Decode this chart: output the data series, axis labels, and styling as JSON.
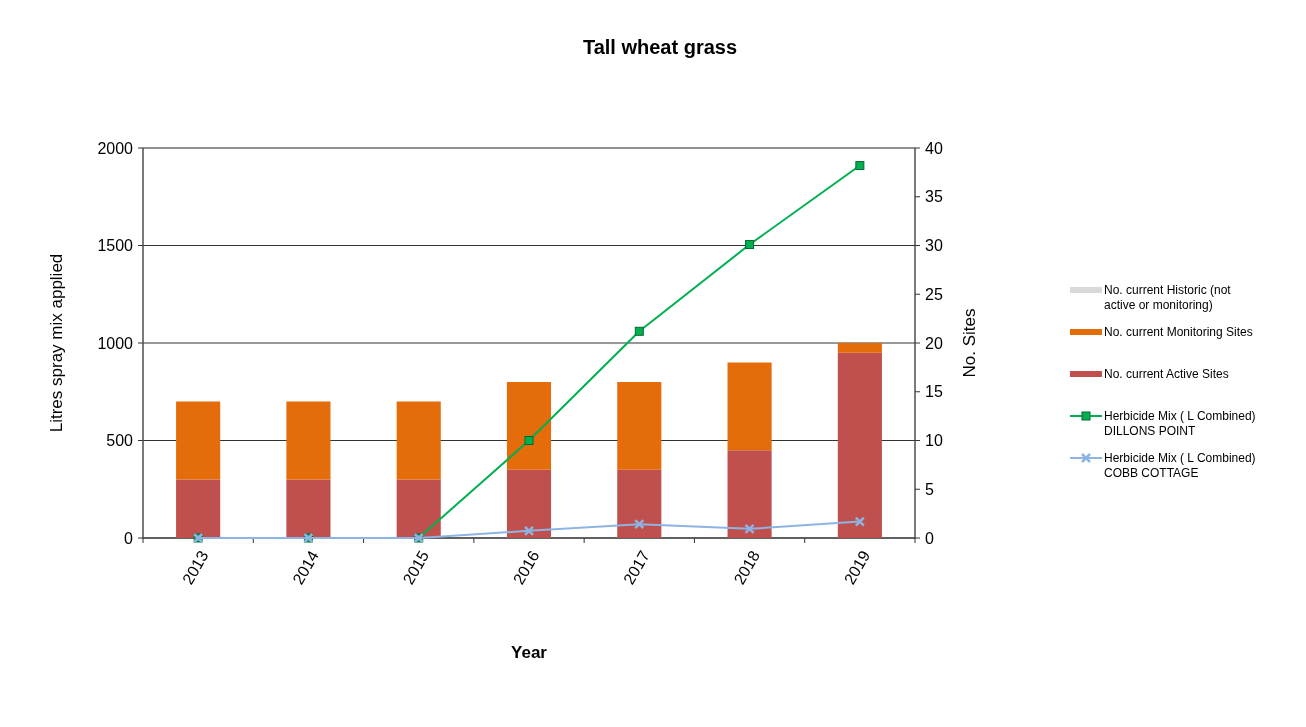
{
  "chart_data": {
    "type": "bar",
    "title": "Tall wheat grass",
    "xlabel": "Year",
    "ylabel": "Litres spray mix applied",
    "y2label": "No. Sites",
    "categories": [
      "2013",
      "2014",
      "2015",
      "2016",
      "2017",
      "2018",
      "2019"
    ],
    "stacked": true,
    "series": [
      {
        "name": "No. current Active Sites",
        "axis": "y2",
        "color": "#c0504d",
        "values": [
          6,
          6,
          6,
          7,
          7,
          9,
          19
        ]
      },
      {
        "name": "No. current Monitoring Sites",
        "axis": "y2",
        "color": "#e46c0a",
        "values": [
          8,
          8,
          8,
          9,
          9,
          9,
          1
        ]
      },
      {
        "name": "No. current Historic (not active or monitoring)",
        "axis": "y2",
        "color": "#d9d9d9",
        "values": [
          0,
          0,
          0,
          0,
          0,
          0,
          0
        ]
      },
      {
        "name": "Herbicide Mix ( L Combined) DILLONS POINT",
        "type": "line",
        "axis": "y",
        "marker": "square",
        "color": "#00b050",
        "values": [
          0,
          0,
          0,
          500,
          1060,
          1505,
          1910
        ]
      },
      {
        "name": "Herbicide Mix ( L Combined) COBB COTTAGE",
        "type": "line",
        "axis": "y",
        "marker": "cross",
        "color": "#8db4e2",
        "values": [
          0,
          0,
          0,
          37,
          71,
          47,
          84
        ]
      }
    ],
    "ylim": [
      0,
      2000
    ],
    "yticks": [
      0,
      500,
      1000,
      1500,
      2000
    ],
    "y2lim": [
      0,
      40
    ],
    "y2ticks": [
      0,
      5,
      10,
      15,
      20,
      25,
      30,
      35,
      40
    ],
    "grid": "y",
    "legend": "right",
    "line_style": "solid"
  }
}
